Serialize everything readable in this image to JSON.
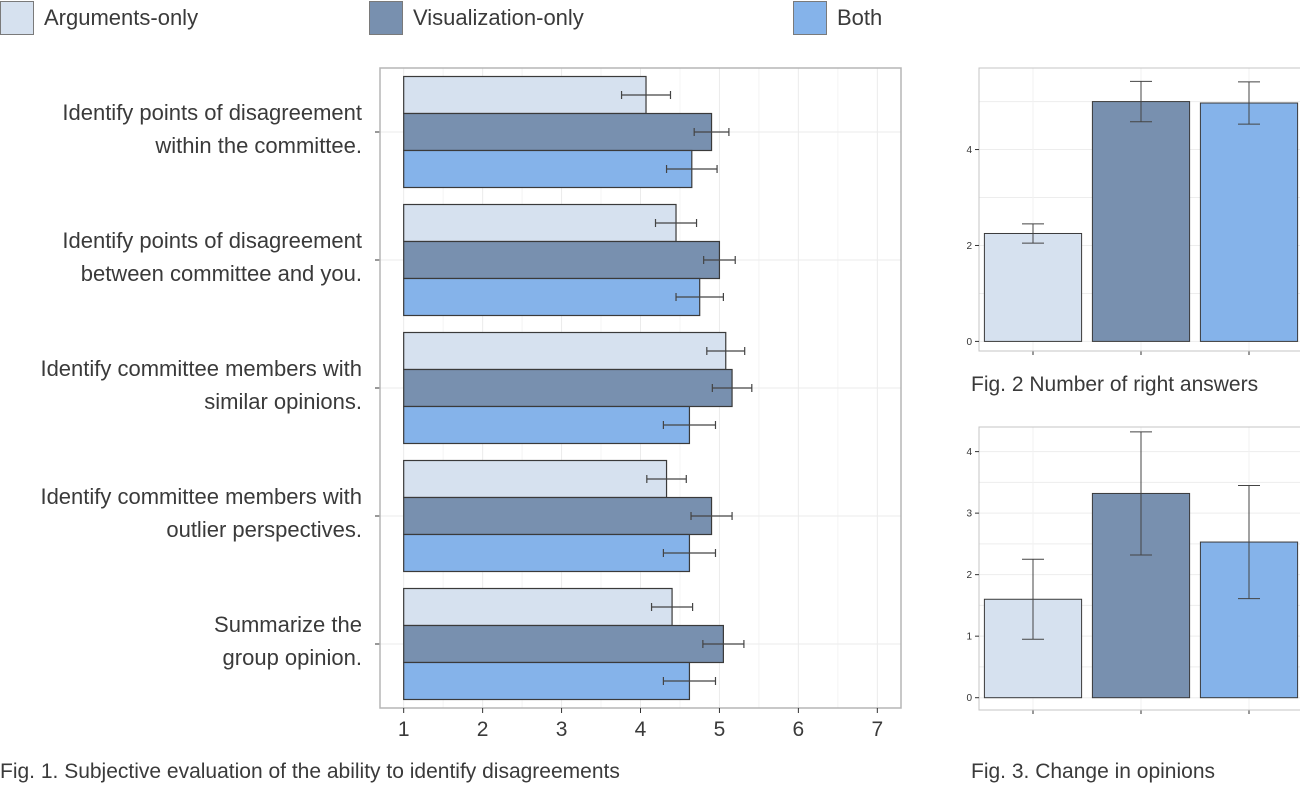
{
  "colors": {
    "Arguments-only": "#d6e1ef",
    "Visualization-only": "#7890af",
    "Both": "#85b3ea"
  },
  "legend": {
    "items": [
      {
        "label": "Arguments-only"
      },
      {
        "label": "Visualization-only"
      },
      {
        "label": "Both"
      }
    ]
  },
  "captions": {
    "fig1": "Fig. 1. Subjective evaluation of the ability to identify disagreements",
    "fig2": "Fig. 2 Number of right answers",
    "fig3": "Fig. 3. Change in opinions"
  },
  "chart_data": [
    {
      "type": "bar",
      "orientation": "horizontal",
      "categories": [
        "Identify points of disagreement within the committee.",
        "Identify points of disagreement between committee and you.",
        "Identify committee members with similar opinions.",
        "Identify committee members with outlier perspectives.",
        "Summarize the group opinion."
      ],
      "category_lines": [
        [
          "Identify points of disagreement",
          "within the committee."
        ],
        [
          "Identify points of disagreement",
          "between committee and you."
        ],
        [
          "Identify committee members with",
          "similar opinions."
        ],
        [
          "Identify committee members with",
          "outlier perspectives."
        ],
        [
          "Summarize the",
          "group opinion."
        ]
      ],
      "series": [
        {
          "name": "Arguments-only",
          "values": [
            4.07,
            4.45,
            5.08,
            4.33,
            4.4
          ],
          "errors": [
            0.31,
            0.26,
            0.24,
            0.25,
            0.26
          ]
        },
        {
          "name": "Visualization-only",
          "values": [
            4.9,
            5.0,
            5.16,
            4.9,
            5.05
          ],
          "errors": [
            0.22,
            0.2,
            0.25,
            0.26,
            0.26
          ]
        },
        {
          "name": "Both",
          "values": [
            4.65,
            4.75,
            4.62,
            4.62,
            4.62
          ],
          "errors": [
            0.32,
            0.3,
            0.33,
            0.33,
            0.33
          ]
        }
      ],
      "xlim": [
        0.7,
        7.3
      ],
      "xticks": [
        1,
        2,
        3,
        4,
        5,
        6,
        7
      ],
      "baseline": 1,
      "grid": true
    },
    {
      "type": "bar",
      "categories": [
        "Arguments-only",
        "Visualization-only",
        "Both"
      ],
      "values": [
        2.25,
        5.0,
        4.97
      ],
      "errors": [
        0.2,
        0.42,
        0.44
      ],
      "ylim": [
        -0.2,
        5.7
      ],
      "yticks": [
        0,
        2,
        4
      ],
      "grid": true
    },
    {
      "type": "bar",
      "categories": [
        "Arguments-only",
        "Visualization-only",
        "Both"
      ],
      "values": [
        1.6,
        3.32,
        2.53
      ],
      "errors": [
        0.65,
        1.0,
        0.92
      ],
      "ylim": [
        -0.2,
        4.4
      ],
      "yticks": [
        0,
        1,
        2,
        3,
        4
      ],
      "grid": true
    }
  ]
}
